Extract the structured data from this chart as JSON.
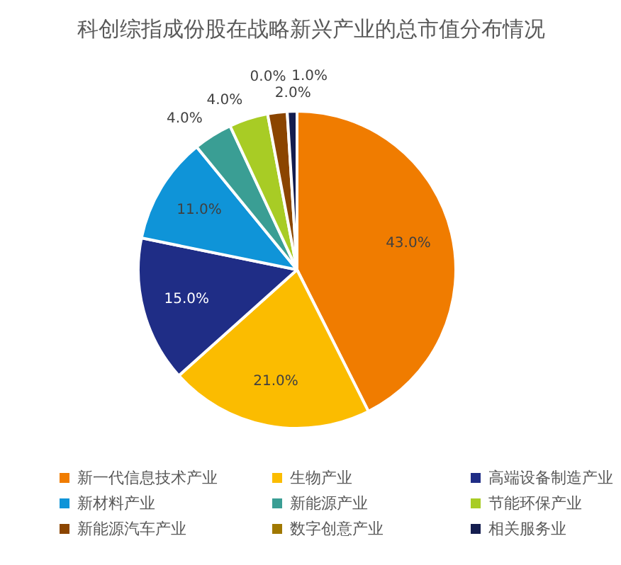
{
  "chart_data": {
    "type": "pie",
    "title": "科创综指成份股在战略新兴产业的总市值分布情况",
    "categories": [
      "新一代信息技术产业",
      "生物产业",
      "高端设备制造产业",
      "新材料产业",
      "新能源产业",
      "节能环保产业",
      "新能源汽车产业",
      "数字创意产业",
      "相关服务业"
    ],
    "values": [
      43.0,
      21.0,
      15.0,
      11.0,
      4.0,
      4.0,
      2.0,
      0.0,
      1.0
    ],
    "colors": [
      "#f07c00",
      "#fbbc00",
      "#1f2d86",
      "#0f94d8",
      "#3a9e94",
      "#a8cc25",
      "#8b4500",
      "#a07800",
      "#141d4f"
    ],
    "value_labels": [
      "43.0%",
      "21.0%",
      "15.0%",
      "11.0%",
      "4.0%",
      "4.0%",
      "2.0%",
      "0.0%",
      "1.0%"
    ],
    "data_labels": true,
    "legend": "bottom"
  }
}
